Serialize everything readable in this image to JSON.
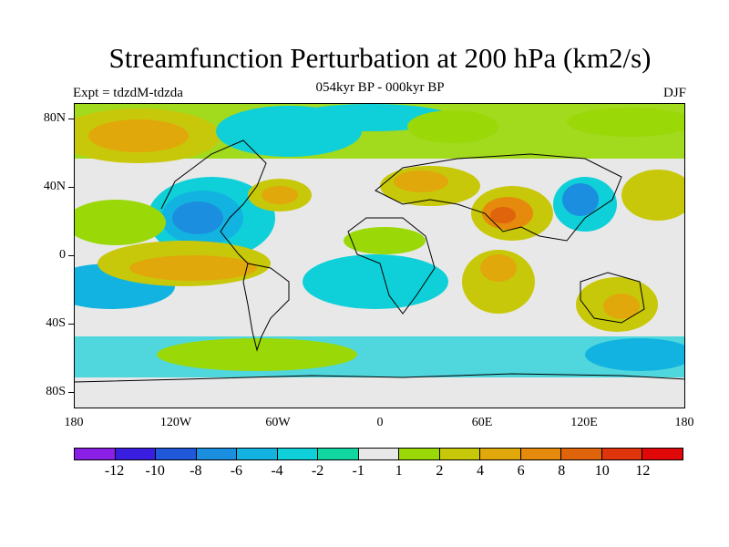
{
  "title": "Streamfunction Perturbation at 200 hPa (km2/s)",
  "left_label": "Expt = tdzdM-tdzda",
  "center_label": "054kyr BP - 000kyr BP",
  "right_label": "DJF",
  "lat_labels": [
    "80N",
    "40N",
    "0",
    "40S",
    "80S"
  ],
  "lon_labels": [
    "180",
    "120W",
    "60W",
    "0",
    "60E",
    "120E",
    "180"
  ],
  "colorbar": {
    "colors": [
      "#8a1fe6",
      "#3a1ee0",
      "#1f58d8",
      "#1b8ee0",
      "#12b3e0",
      "#0fd0d8",
      "#12d6a0",
      "#e8e8e8",
      "#9ad808",
      "#c8c80a",
      "#e0a80a",
      "#e58a0c",
      "#e0640c",
      "#e0340c",
      "#e00808"
    ],
    "labels": [
      "-12",
      "-10",
      "-8",
      "-6",
      "-4",
      "-2",
      "-1",
      "1",
      "2",
      "4",
      "6",
      "8",
      "10",
      "12"
    ]
  }
}
